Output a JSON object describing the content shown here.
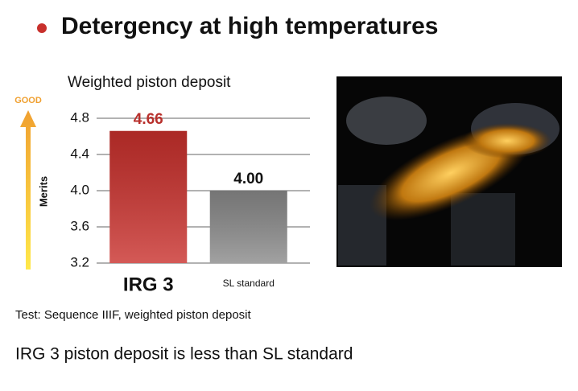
{
  "title": "Detergency at high temperatures",
  "chart_data": {
    "type": "bar",
    "title": "Weighted piston deposit",
    "ylabel": "Merits",
    "direction_label": "GOOD",
    "categories": [
      "IRG 3",
      "SL standard"
    ],
    "values": [
      4.66,
      4.0
    ],
    "value_labels": [
      "4.66",
      "4.00"
    ],
    "colors": [
      "#c9302c",
      "#8a8a8a"
    ],
    "label_colors": [
      "#b8302c",
      "#111111"
    ],
    "ylim": [
      3.2,
      4.8
    ],
    "yticks": [
      3.2,
      3.6,
      {
        "value": 4,
        "label": "4.0"
      },
      4.4,
      4.8
    ],
    "grid": true
  },
  "note": "Test: Sequence IIIF, weighted piston deposit",
  "conclusion": "IRG 3 piston deposit is less than SL standard"
}
